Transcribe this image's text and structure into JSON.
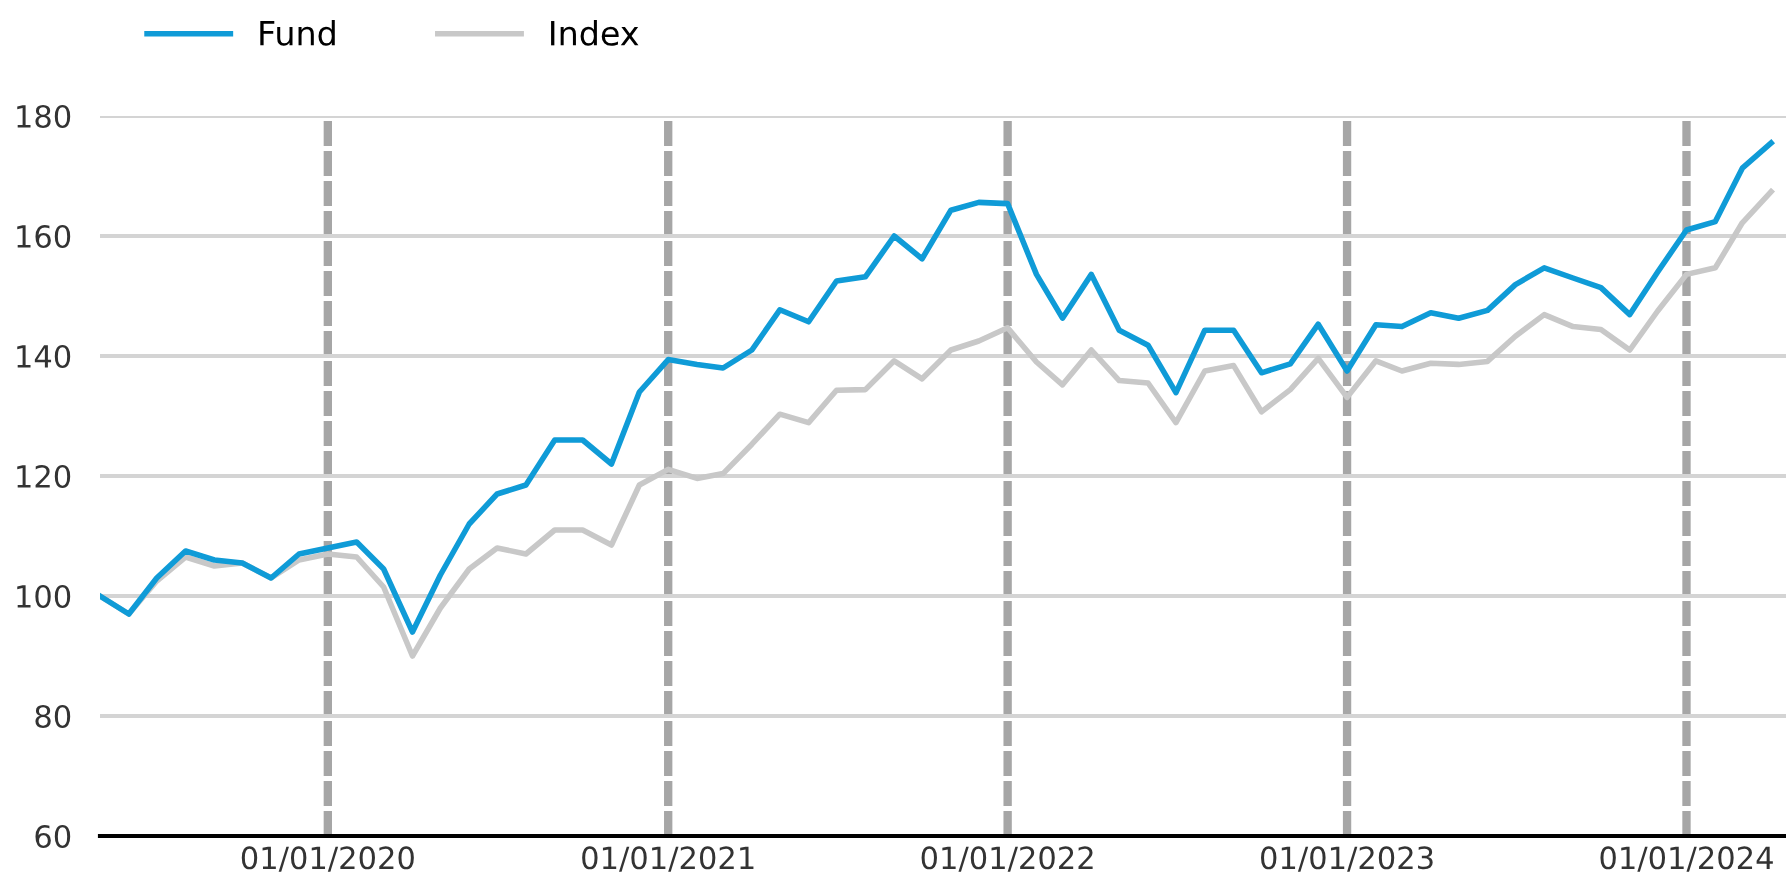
{
  "chart_data": {
    "type": "line",
    "x": [
      "2019-05",
      "2019-06",
      "2019-07",
      "2019-08",
      "2019-09",
      "2019-10",
      "2019-11",
      "2019-12",
      "2020-01",
      "2020-02",
      "2020-03",
      "2020-04",
      "2020-05",
      "2020-06",
      "2020-07",
      "2020-08",
      "2020-09",
      "2020-10",
      "2020-11",
      "2020-12",
      "2021-01",
      "2021-02",
      "2021-03",
      "2021-04",
      "2021-05",
      "2021-06",
      "2021-07",
      "2021-08",
      "2021-09",
      "2021-10",
      "2021-11",
      "2021-12",
      "2022-01",
      "2022-02",
      "2022-03",
      "2022-04",
      "2022-05",
      "2022-06",
      "2022-07",
      "2022-08",
      "2022-09",
      "2022-10",
      "2022-11",
      "2022-12",
      "2023-01",
      "2023-02",
      "2023-03",
      "2023-04",
      "2023-05",
      "2023-06",
      "2023-07",
      "2023-08",
      "2023-09",
      "2023-10",
      "2023-11",
      "2023-12",
      "2024-01",
      "2024-02",
      "2024-03",
      "2024-04"
    ],
    "series": [
      {
        "name": "Fund",
        "color": "#0f9bd7",
        "values": [
          100,
          97,
          103,
          107.5,
          106,
          105.5,
          103,
          107,
          108,
          109,
          104.5,
          94,
          103.5,
          112,
          117,
          118.5,
          126,
          126,
          122,
          134,
          139.4,
          138.6,
          138,
          141,
          147.7,
          145.7,
          152.5,
          153.2,
          160,
          156.2,
          164.3,
          165.6,
          165.4,
          153.6,
          146.3,
          153.6,
          144.3,
          141.8,
          133.9,
          144.3,
          144.3,
          137.2,
          138.7,
          145.3,
          137.5,
          145.2,
          144.9,
          147.2,
          146.3,
          147.6,
          151.9,
          154.7,
          153,
          151.4,
          146.9,
          154,
          161,
          162.4,
          171.3,
          175.5
        ]
      },
      {
        "name": "Index",
        "color": "#c8c8c8",
        "values": [
          100,
          97,
          102.5,
          106.5,
          105,
          105.5,
          103,
          106,
          107,
          106.5,
          101.5,
          90,
          98,
          104.5,
          108,
          107,
          111,
          111,
          108.5,
          118.5,
          121.1,
          119.6,
          120.4,
          125.3,
          130.3,
          128.9,
          134.3,
          134.4,
          139.2,
          136.2,
          141,
          142.5,
          144.7,
          139,
          135.2,
          141,
          135.9,
          135.5,
          128.9,
          137.5,
          138.4,
          130.7,
          134.4,
          139.6,
          133.1,
          139.2,
          137.5,
          138.8,
          138.6,
          139.1,
          143.3,
          146.9,
          144.9,
          144.4,
          141,
          147.5,
          153.6,
          154.7,
          162.2,
          167.4
        ]
      }
    ],
    "xlim": [
      "2019-05-01",
      "2024-04-17"
    ],
    "xticks": [
      {
        "value": "2020-01-01",
        "label": "01/01/2020"
      },
      {
        "value": "2021-01-01",
        "label": "01/01/2021"
      },
      {
        "value": "2022-01-01",
        "label": "01/01/2022"
      },
      {
        "value": "2023-01-01",
        "label": "01/01/2023"
      },
      {
        "value": "2024-01-01",
        "label": "01/01/2024"
      }
    ],
    "ylim": [
      60,
      180
    ],
    "yticks": [
      60,
      80,
      100,
      120,
      140,
      160,
      180
    ],
    "grid": true,
    "legend": "top left",
    "marker": "none",
    "line_style": "solid"
  }
}
